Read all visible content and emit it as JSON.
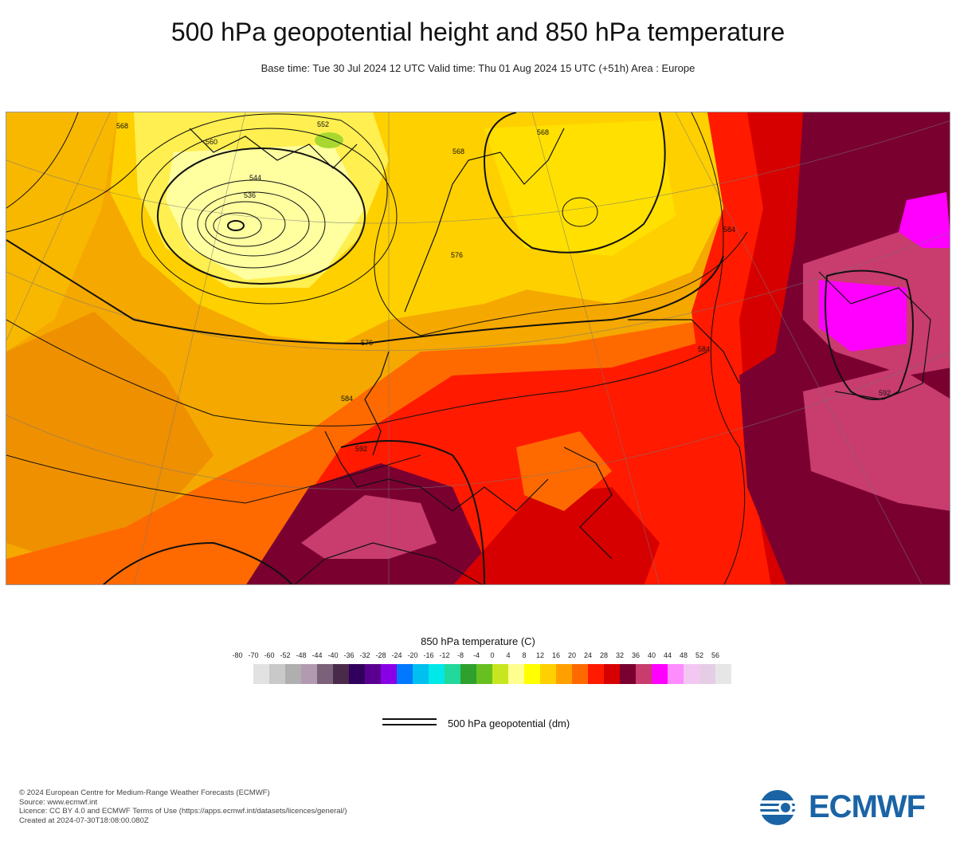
{
  "header": {
    "title": "500 hPa geopotential height and 850 hPa temperature",
    "subtitle": "Base time: Tue 30 Jul 2024 12 UTC Valid time: Thu 01 Aug 2024 15 UTC (+51h) Area : Europe"
  },
  "map": {
    "area": "Europe",
    "contour_labels": [
      "568",
      "560",
      "552",
      "544",
      "536",
      "576",
      "584",
      "592",
      "568",
      "584",
      "592",
      "584",
      "576",
      "568"
    ]
  },
  "legend": {
    "title": "850 hPa temperature (C)",
    "ticks": [
      "-80",
      "-70",
      "-60",
      "-52",
      "-48",
      "-44",
      "-40",
      "-36",
      "-32",
      "-28",
      "-24",
      "-20",
      "-16",
      "-12",
      "-8",
      "-4",
      "0",
      "4",
      "8",
      "12",
      "16",
      "20",
      "24",
      "28",
      "32",
      "36",
      "40",
      "44",
      "48",
      "52",
      "56"
    ],
    "colors": [
      "#e2e2e2",
      "#c9c9c9",
      "#afafaf",
      "#b29bb1",
      "#7b6179",
      "#4a2a4a",
      "#30005c",
      "#5a0090",
      "#8a00e6",
      "#0078ff",
      "#00c0f0",
      "#00e8e8",
      "#22d89a",
      "#2ea02e",
      "#68c020",
      "#c8e620",
      "#ffff90",
      "#ffff00",
      "#ffd000",
      "#ffa000",
      "#ff6a00",
      "#ff1a00",
      "#d60000",
      "#7a0030",
      "#c83c6e",
      "#ff00ff",
      "#ff8cff",
      "#f2c8f2",
      "#e6cde6",
      "#e6e6e6"
    ],
    "contour_label": "500 hPa geopotential (dm)"
  },
  "footer": {
    "lines": [
      "© 2024 European Centre for Medium-Range Weather Forecasts (ECMWF)",
      "Source: www.ecmwf.int",
      "Licence: CC BY 4.0 and ECMWF Terms of Use (https://apps.ecmwf.int/datasets/licences/general/)",
      "Created at 2024-07-30T18:08:00.080Z"
    ]
  },
  "logo": {
    "text": "ECMWF",
    "icon": "ecmwf-logo-icon",
    "color": "#1a64a6"
  }
}
